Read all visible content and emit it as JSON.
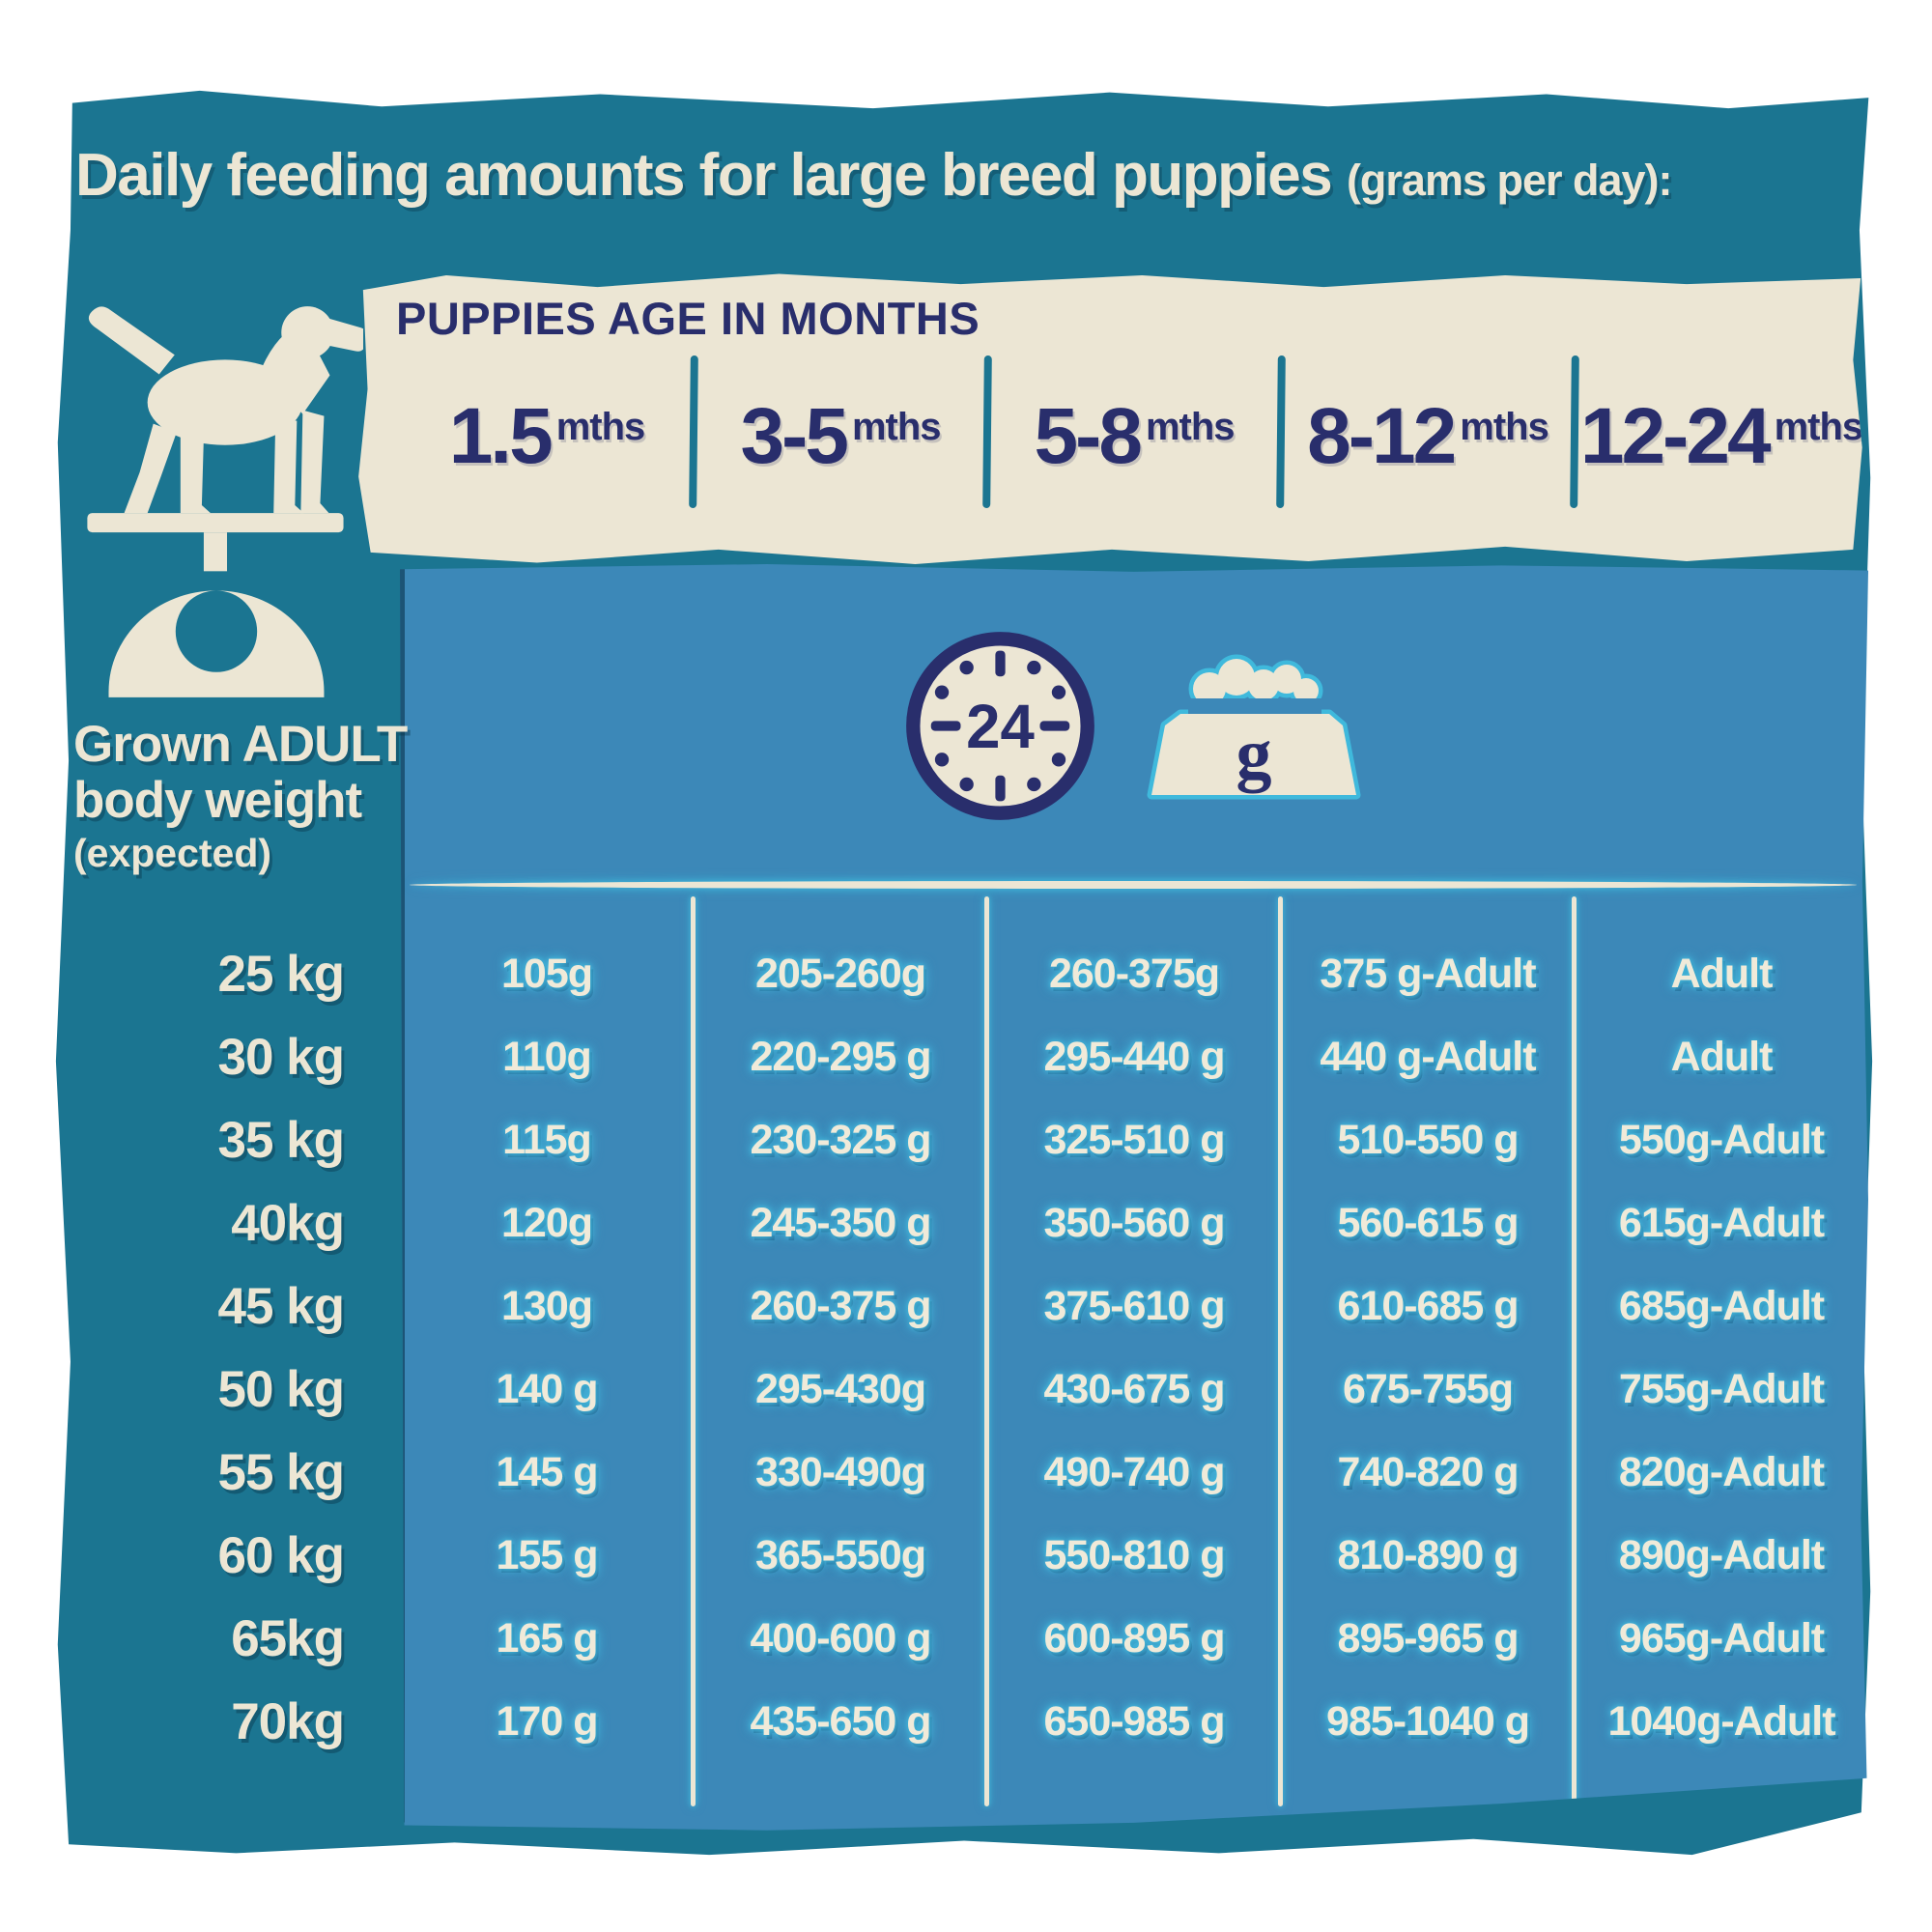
{
  "page": {
    "title_main": "Daily feeding amounts for large breed puppies",
    "title_suffix": "(grams per day):"
  },
  "header": {
    "label": "PUPPIES AGE IN MONTHS",
    "ages": [
      {
        "value": "1.5",
        "unit": "mths"
      },
      {
        "value": "3-5",
        "unit": "mths"
      },
      {
        "value": "5-8",
        "unit": "mths"
      },
      {
        "value": "8-12",
        "unit": "mths"
      },
      {
        "value": "12-24",
        "unit": "mths"
      }
    ]
  },
  "sidebar": {
    "title_line1": "Grown ADULT",
    "title_line2": "body weight",
    "title_line3": "(expected)"
  },
  "icons": {
    "clock_value": "24",
    "bowl_unit": "g"
  },
  "colors": {
    "teal": "#1b7591",
    "light_blue": "#3c88b8",
    "cream": "#ece6d4",
    "navy": "#292e6c",
    "cyan_glow": "#3fb9dc"
  },
  "chart_data": {
    "type": "table",
    "title": "Daily feeding amounts for large breed puppies (grams per day)",
    "column_header": "PUPPIES AGE IN MONTHS",
    "row_header": "Grown ADULT body weight (expected)",
    "columns": [
      "1.5 mths",
      "3-5 mths",
      "5-8 mths",
      "8-12 mths",
      "12-24 mths"
    ],
    "rows": [
      {
        "weight": "25 kg",
        "values": [
          "105g",
          "205-260g",
          "260-375g",
          "375 g-Adult",
          "Adult"
        ]
      },
      {
        "weight": "30 kg",
        "values": [
          "110g",
          "220-295 g",
          "295-440 g",
          "440 g-Adult",
          "Adult"
        ]
      },
      {
        "weight": "35 kg",
        "values": [
          "115g",
          "230-325 g",
          "325-510 g",
          "510-550 g",
          "550g-Adult"
        ]
      },
      {
        "weight": "40kg",
        "values": [
          "120g",
          "245-350 g",
          "350-560 g",
          "560-615 g",
          "615g-Adult"
        ]
      },
      {
        "weight": "45 kg",
        "values": [
          "130g",
          "260-375 g",
          "375-610 g",
          "610-685 g",
          "685g-Adult"
        ]
      },
      {
        "weight": "50 kg",
        "values": [
          "140 g",
          "295-430g",
          "430-675 g",
          "675-755g",
          "755g-Adult"
        ]
      },
      {
        "weight": "55 kg",
        "values": [
          "145 g",
          "330-490g",
          "490-740 g",
          "740-820 g",
          "820g-Adult"
        ]
      },
      {
        "weight": "60 kg",
        "values": [
          "155 g",
          "365-550g",
          "550-810 g",
          "810-890 g",
          "890g-Adult"
        ]
      },
      {
        "weight": "65kg",
        "values": [
          "165 g",
          "400-600 g",
          "600-895 g",
          "895-965 g",
          "965g-Adult"
        ]
      },
      {
        "weight": "70kg",
        "values": [
          "170 g",
          "435-650 g",
          "650-985 g",
          "985-1040 g",
          "1040g-Adult"
        ]
      }
    ]
  }
}
